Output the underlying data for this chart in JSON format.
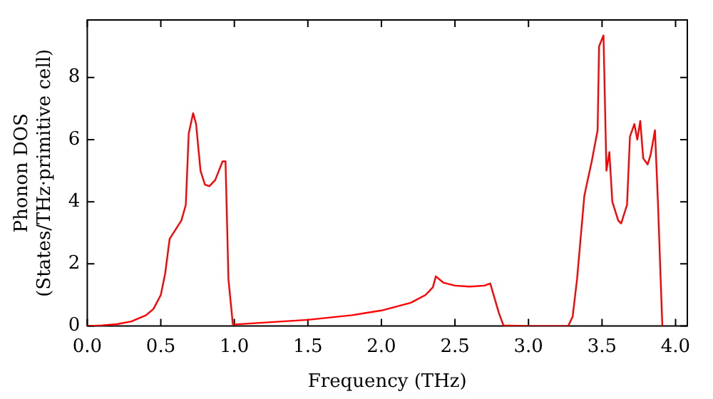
{
  "chart_data": {
    "type": "line",
    "xlabel": "Frequency (THz)",
    "ylabel": "Phonon DOS\n(States/THz·primitive cell)",
    "xlim": [
      0,
      4.08
    ],
    "ylim": [
      0,
      9.85
    ],
    "xticks": [
      {
        "value": 0,
        "label": "0.0"
      },
      {
        "value": 0.5,
        "label": "0.5"
      },
      {
        "value": 1,
        "label": "1.0"
      },
      {
        "value": 1.5,
        "label": "1.5"
      },
      {
        "value": 2,
        "label": "2.0"
      },
      {
        "value": 2.5,
        "label": "2.5"
      },
      {
        "value": 3,
        "label": "3.0"
      },
      {
        "value": 3.5,
        "label": "3.5"
      },
      {
        "value": 4,
        "label": "4.0"
      }
    ],
    "yticks": [
      0,
      2,
      4,
      6,
      8
    ],
    "marker": "none",
    "line_style": "solid",
    "legend": false,
    "series": [
      {
        "color": "#ff0000",
        "x": [
          0,
          0.1,
          0.2,
          0.3,
          0.4,
          0.45,
          0.5,
          0.53,
          0.56,
          0.6,
          0.64,
          0.67,
          0.69,
          0.72,
          0.74,
          0.77,
          0.8,
          0.83,
          0.87,
          0.92,
          0.94,
          0.96,
          0.99,
          1.0,
          1.5,
          1.8,
          2.0,
          2.2,
          2.3,
          2.35,
          2.37,
          2.42,
          2.5,
          2.6,
          2.7,
          2.74,
          2.8,
          2.83,
          3.0,
          3.27,
          3.3,
          3.33,
          3.38,
          3.43,
          3.47,
          3.48,
          3.51,
          3.53,
          3.55,
          3.57,
          3.61,
          3.63,
          3.67,
          3.69,
          3.72,
          3.74,
          3.76,
          3.78,
          3.81,
          3.83,
          3.86,
          3.88,
          3.91
        ],
        "values": [
          0,
          0.02,
          0.06,
          0.15,
          0.35,
          0.55,
          1.0,
          1.7,
          2.8,
          3.1,
          3.4,
          3.9,
          6.2,
          6.85,
          6.5,
          5.0,
          4.55,
          4.5,
          4.7,
          5.3,
          5.3,
          1.5,
          0.05,
          0.05,
          0.2,
          0.35,
          0.5,
          0.75,
          1.0,
          1.25,
          1.6,
          1.4,
          1.3,
          1.27,
          1.3,
          1.37,
          0.4,
          0.02,
          0,
          0,
          0.3,
          1.5,
          4.2,
          5.3,
          6.3,
          9.0,
          9.35,
          5.0,
          5.6,
          4.0,
          3.4,
          3.3,
          3.9,
          6.1,
          6.5,
          6.0,
          6.6,
          5.4,
          5.2,
          5.5,
          6.3,
          4.0,
          0
        ]
      }
    ]
  }
}
